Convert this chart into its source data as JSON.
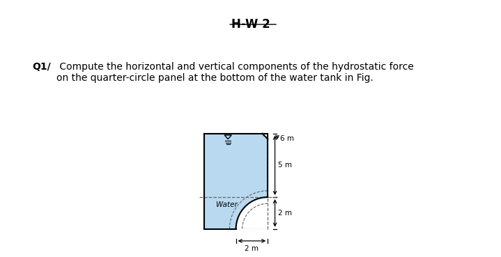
{
  "title": "H-W 2",
  "question_bold": "Q1/",
  "question_text": " Compute the horizontal and vertical components of the hydrostatic force\non the quarter-circle panel at the bottom of the water tank in Fig.",
  "bg_color": "#ffffff",
  "water_color": "#b8d9f0",
  "dim_6m": "6 m",
  "dim_5m": "5 m",
  "dim_2m_v": "2 m",
  "dim_2m_h": "2 m",
  "water_label": "Water",
  "figure_width": 7.19,
  "figure_height": 3.69
}
